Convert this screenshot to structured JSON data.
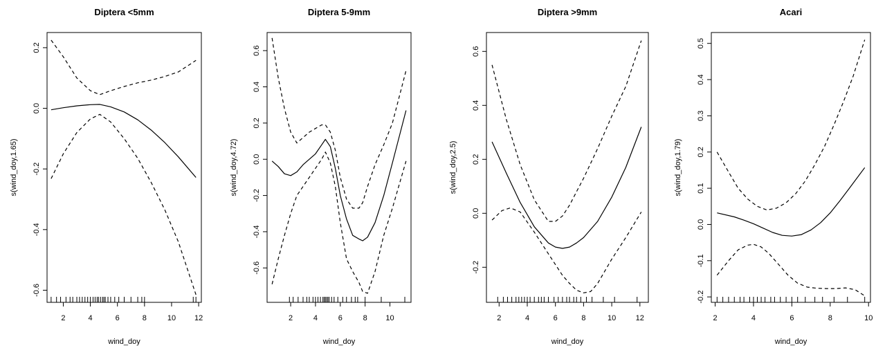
{
  "chart_data": [
    {
      "type": "line",
      "title": "Diptera <5mm",
      "xlabel": "wind_doy",
      "ylabel": "s(wind_doy,1.65)",
      "xlim": [
        0.8,
        12.2
      ],
      "ylim": [
        -0.64,
        0.25
      ],
      "xticks": [
        2,
        4,
        6,
        8,
        10,
        12
      ],
      "yticks": [
        -0.6,
        -0.4,
        -0.2,
        0.0,
        0.2
      ],
      "ytick_labels": [
        "-0.6",
        "-0.4",
        "-0.2",
        "0.0",
        "0.2"
      ],
      "series": [
        {
          "style": "solid",
          "x": [
            1.1,
            2,
            3,
            4,
            4.7,
            5.5,
            6.5,
            7.5,
            8.5,
            9.5,
            10.5,
            11.8
          ],
          "y": [
            -0.005,
            0.002,
            0.008,
            0.012,
            0.013,
            0.005,
            -0.012,
            -0.038,
            -0.072,
            -0.113,
            -0.16,
            -0.228
          ]
        },
        {
          "style": "dashed",
          "x": [
            1.1,
            2,
            3,
            4,
            4.7,
            5.5,
            6.5,
            7.5,
            8.5,
            9.5,
            10.5,
            11.8
          ],
          "y": [
            0.225,
            0.17,
            0.1,
            0.058,
            0.045,
            0.058,
            0.072,
            0.084,
            0.093,
            0.105,
            0.12,
            0.158
          ]
        },
        {
          "style": "dashed",
          "x": [
            1.1,
            2,
            3,
            4,
            4.7,
            5.5,
            6.5,
            7.5,
            8.5,
            9.5,
            10.5,
            11.8
          ],
          "y": [
            -0.232,
            -0.15,
            -0.08,
            -0.035,
            -0.02,
            -0.045,
            -0.1,
            -0.165,
            -0.245,
            -0.335,
            -0.44,
            -0.615
          ]
        }
      ],
      "rug": [
        1.1,
        1.5,
        1.8,
        2.2,
        2.5,
        2.7,
        3.0,
        3.2,
        3.4,
        3.6,
        3.8,
        4.0,
        4.2,
        4.35,
        4.5,
        4.6,
        4.75,
        4.9,
        5.0,
        5.1,
        5.3,
        5.5,
        5.8,
        6.1,
        6.5,
        7.0,
        7.5,
        7.8,
        8.0,
        11.6,
        11.8
      ]
    },
    {
      "type": "line",
      "title": "Diptera 5-9mm",
      "xlabel": "wind_doy",
      "ylabel": "s(wind_doy,4.72)",
      "xlim": [
        0.1,
        11.7
      ],
      "ylim": [
        -0.79,
        0.7
      ],
      "xticks": [
        2,
        4,
        6,
        8,
        10
      ],
      "yticks": [
        -0.6,
        -0.4,
        -0.2,
        0.0,
        0.2,
        0.4,
        0.6
      ],
      "ytick_labels": [
        "-0.6",
        "-0.4",
        "-0.2",
        "0.0",
        "0.2",
        "0.4",
        "0.6"
      ],
      "series": [
        {
          "style": "solid",
          "x": [
            0.5,
            1.0,
            1.5,
            2.0,
            2.5,
            3.0,
            3.5,
            4.0,
            4.5,
            4.8,
            5.2,
            5.6,
            6.0,
            6.5,
            7.0,
            7.5,
            7.8,
            8.2,
            8.8,
            9.5,
            10.2,
            11.3
          ],
          "y": [
            -0.01,
            -0.04,
            -0.08,
            -0.09,
            -0.07,
            -0.03,
            0.0,
            0.03,
            0.08,
            0.11,
            0.07,
            -0.05,
            -0.2,
            -0.33,
            -0.42,
            -0.44,
            -0.45,
            -0.43,
            -0.35,
            -0.2,
            -0.02,
            0.27
          ]
        },
        {
          "style": "dashed",
          "x": [
            0.5,
            1.0,
            1.5,
            2.0,
            2.5,
            3.0,
            3.5,
            4.0,
            4.5,
            4.8,
            5.2,
            5.6,
            6.0,
            6.5,
            7.0,
            7.5,
            7.8,
            8.2,
            8.8,
            9.5,
            10.2,
            11.3
          ],
          "y": [
            0.67,
            0.45,
            0.28,
            0.15,
            0.09,
            0.12,
            0.15,
            0.17,
            0.19,
            0.19,
            0.15,
            0.05,
            -0.1,
            -0.22,
            -0.27,
            -0.27,
            -0.24,
            -0.15,
            -0.03,
            0.08,
            0.2,
            0.49
          ]
        },
        {
          "style": "dashed",
          "x": [
            0.5,
            1.0,
            1.5,
            2.0,
            2.5,
            3.0,
            3.5,
            4.0,
            4.5,
            4.8,
            5.2,
            5.6,
            6.0,
            6.5,
            7.0,
            7.5,
            7.8,
            8.2,
            8.8,
            9.5,
            10.2,
            11.3
          ],
          "y": [
            -0.69,
            -0.55,
            -0.42,
            -0.3,
            -0.2,
            -0.15,
            -0.1,
            -0.05,
            0.0,
            0.04,
            -0.02,
            -0.15,
            -0.35,
            -0.55,
            -0.62,
            -0.68,
            -0.73,
            -0.74,
            -0.62,
            -0.42,
            -0.27,
            -0.01
          ]
        }
      ],
      "rug": [
        1.9,
        2.2,
        2.6,
        3.0,
        3.3,
        3.5,
        3.8,
        4.0,
        4.2,
        4.4,
        4.6,
        4.7,
        4.8,
        4.9,
        5.0,
        5.1,
        5.3,
        5.5,
        5.8,
        6.2,
        6.5,
        6.9,
        7.2,
        7.4,
        8.0,
        9.3,
        11.2
      ]
    },
    {
      "type": "line",
      "title": "Diptera >9mm",
      "xlabel": "wind_doy",
      "ylabel": "s(wind_doy,2.5)",
      "xlim": [
        1.1,
        12.6
      ],
      "ylim": [
        -0.33,
        0.67
      ],
      "xticks": [
        2,
        4,
        6,
        8,
        10,
        12
      ],
      "yticks": [
        -0.2,
        0.0,
        0.2,
        0.4,
        0.6
      ],
      "ytick_labels": [
        "-0.2",
        "0.0",
        "0.2",
        "0.4",
        "0.6"
      ],
      "series": [
        {
          "style": "solid",
          "x": [
            1.5,
            2.5,
            3.5,
            4.5,
            5.5,
            6.0,
            6.5,
            7.0,
            7.5,
            8.0,
            9.0,
            10.0,
            11.0,
            12.1
          ],
          "y": [
            0.265,
            0.15,
            0.04,
            -0.05,
            -0.11,
            -0.125,
            -0.13,
            -0.125,
            -0.11,
            -0.09,
            -0.03,
            0.06,
            0.17,
            0.32
          ]
        },
        {
          "style": "dashed",
          "x": [
            1.5,
            2.5,
            3.5,
            4.5,
            5.5,
            6.0,
            6.5,
            7.0,
            7.5,
            8.0,
            9.0,
            10.0,
            11.0,
            12.1
          ],
          "y": [
            0.55,
            0.35,
            0.18,
            0.05,
            -0.03,
            -0.03,
            -0.01,
            0.03,
            0.08,
            0.13,
            0.24,
            0.36,
            0.47,
            0.64
          ]
        },
        {
          "style": "dashed",
          "x": [
            1.5,
            2.2,
            2.8,
            3.5,
            4.5,
            5.5,
            6.0,
            6.5,
            7.0,
            7.5,
            8.0,
            8.5,
            9.0,
            10.0,
            11.0,
            12.1
          ],
          "y": [
            -0.025,
            0.01,
            0.02,
            0.005,
            -0.07,
            -0.15,
            -0.19,
            -0.23,
            -0.26,
            -0.285,
            -0.295,
            -0.29,
            -0.26,
            -0.17,
            -0.09,
            0.005
          ]
        }
      ],
      "rug": [
        1.9,
        2.3,
        2.6,
        2.9,
        3.2,
        3.4,
        3.6,
        3.8,
        4.0,
        4.2,
        4.5,
        4.8,
        5.0,
        5.2,
        5.5,
        5.9,
        6.2,
        6.5,
        6.8,
        7.0,
        7.3,
        7.5,
        7.8,
        8.2,
        8.6,
        9.4,
        10.2,
        11.8
      ]
    },
    {
      "type": "line",
      "title": "Acari",
      "xlabel": "wind_doy",
      "ylabel": "s(wind_doy,1.79)",
      "xlim": [
        1.8,
        10.1
      ],
      "ylim": [
        -0.215,
        0.53
      ],
      "xticks": [
        2,
        4,
        6,
        8,
        10
      ],
      "yticks": [
        -0.2,
        -0.1,
        0.0,
        0.1,
        0.2,
        0.3,
        0.4,
        0.5
      ],
      "ytick_labels": [
        "-0.2",
        "-0.1",
        "0.0",
        "0.1",
        "0.2",
        "0.3",
        "0.4",
        "0.5"
      ],
      "series": [
        {
          "style": "solid",
          "x": [
            2.1,
            3.0,
            3.5,
            4.0,
            4.5,
            5.0,
            5.5,
            6.0,
            6.5,
            7.0,
            7.5,
            8.0,
            8.5,
            9.0,
            9.8
          ],
          "y": [
            0.032,
            0.021,
            0.012,
            0.002,
            -0.01,
            -0.022,
            -0.03,
            -0.032,
            -0.028,
            -0.015,
            0.005,
            0.032,
            0.065,
            0.1,
            0.157
          ]
        },
        {
          "style": "dashed",
          "x": [
            2.1,
            2.7,
            3.2,
            3.7,
            4.2,
            4.7,
            5.2,
            5.7,
            6.2,
            6.7,
            7.2,
            7.7,
            8.2,
            8.7,
            9.2,
            9.8
          ],
          "y": [
            0.2,
            0.145,
            0.1,
            0.07,
            0.05,
            0.04,
            0.045,
            0.06,
            0.085,
            0.12,
            0.165,
            0.215,
            0.275,
            0.34,
            0.41,
            0.51
          ]
        },
        {
          "style": "dashed",
          "x": [
            2.1,
            2.7,
            3.2,
            3.7,
            4.0,
            4.4,
            4.8,
            5.3,
            5.8,
            6.3,
            6.8,
            7.3,
            7.8,
            8.3,
            8.8,
            9.3,
            9.8
          ],
          "y": [
            -0.14,
            -0.1,
            -0.07,
            -0.057,
            -0.055,
            -0.062,
            -0.08,
            -0.11,
            -0.14,
            -0.162,
            -0.173,
            -0.176,
            -0.177,
            -0.177,
            -0.175,
            -0.18,
            -0.197
          ]
        }
      ],
      "rug": [
        2.1,
        2.4,
        2.7,
        3.0,
        3.3,
        3.5,
        3.8,
        4.0,
        4.2,
        4.4,
        4.6,
        4.9,
        5.1,
        5.4,
        5.7,
        6.0,
        6.3,
        6.7,
        7.2,
        7.6,
        8.2,
        8.9,
        9.8
      ]
    }
  ]
}
